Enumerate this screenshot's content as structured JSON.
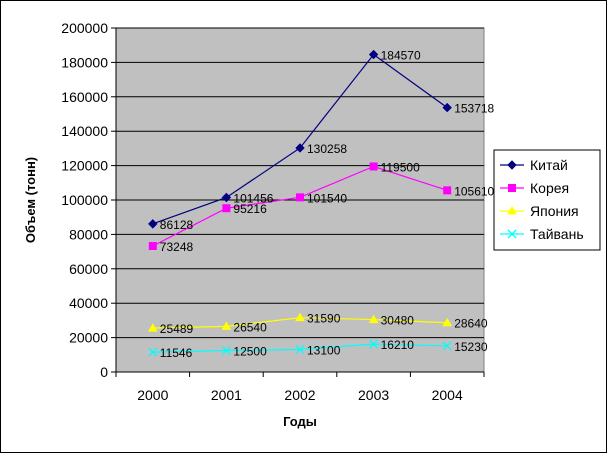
{
  "chart_data": {
    "type": "line",
    "title": "",
    "xlabel": "Годы",
    "ylabel": "Объем (тонн)",
    "categories": [
      "2000",
      "2001",
      "2002",
      "2003",
      "2004"
    ],
    "ylim": [
      0,
      200000
    ],
    "ytick_step": 20000,
    "ytick_labels": [
      "0",
      "20000",
      "40000",
      "60000",
      "80000",
      "100000",
      "120000",
      "140000",
      "160000",
      "180000",
      "200000"
    ],
    "grid": true,
    "plot_background": "#c0c0c0",
    "legend_position": "right",
    "series": [
      {
        "name": "Китай",
        "values": [
          86128,
          101456,
          130258,
          184570,
          153718
        ],
        "color": "#000080",
        "marker": "diamond"
      },
      {
        "name": "Корея",
        "values": [
          73248,
          95216,
          101540,
          119500,
          105610
        ],
        "color": "#ff00ff",
        "marker": "square"
      },
      {
        "name": "Япония",
        "values": [
          25489,
          26540,
          31590,
          30480,
          28640
        ],
        "color": "#ffff00",
        "marker": "triangle"
      },
      {
        "name": "Тайвань",
        "values": [
          11546,
          12500,
          13100,
          16210,
          15230
        ],
        "color": "#00ffff",
        "marker": "x"
      }
    ]
  }
}
